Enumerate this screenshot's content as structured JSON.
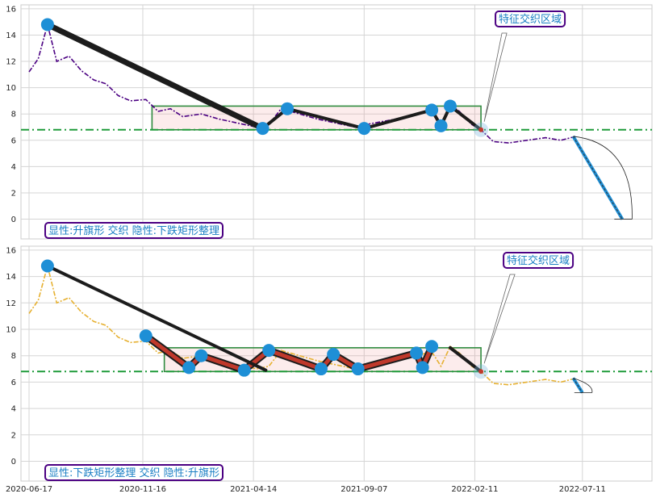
{
  "chart_data": [
    {
      "type": "line",
      "panel": "top",
      "line_color": "#4b0082",
      "line_style": "dash-dot",
      "grid": true,
      "ylim": [
        -1.5,
        16.3
      ],
      "yticks": [
        0,
        2,
        4,
        6,
        8,
        10,
        12,
        14,
        16
      ],
      "hline": 6.8,
      "annotation_label": "显性:升旗形 交织 隐性:下跌矩形整理",
      "region_label": "特征交织区域",
      "price": [
        [
          0,
          11.2
        ],
        [
          6,
          12.2
        ],
        [
          12,
          14.8
        ],
        [
          18,
          12.0
        ],
        [
          26,
          12.4
        ],
        [
          34,
          11.3
        ],
        [
          42,
          10.6
        ],
        [
          50,
          10.3
        ],
        [
          58,
          9.4
        ],
        [
          66,
          9.0
        ],
        [
          76,
          9.1
        ],
        [
          84,
          8.2
        ],
        [
          92,
          8.4
        ],
        [
          100,
          7.8
        ],
        [
          112,
          8.0
        ],
        [
          124,
          7.6
        ],
        [
          136,
          7.3
        ],
        [
          148,
          7.0
        ],
        [
          156,
          7.2
        ],
        [
          164,
          8.4
        ],
        [
          176,
          8.0
        ],
        [
          188,
          7.6
        ],
        [
          200,
          7.3
        ],
        [
          212,
          7.0
        ],
        [
          224,
          7.3
        ],
        [
          238,
          7.6
        ],
        [
          252,
          8.0
        ],
        [
          262,
          8.3
        ],
        [
          268,
          7.2
        ],
        [
          274,
          8.7
        ],
        [
          280,
          8.2
        ],
        [
          288,
          7.2
        ],
        [
          294,
          6.8
        ],
        [
          302,
          5.9
        ],
        [
          312,
          5.8
        ],
        [
          324,
          6.0
        ],
        [
          336,
          6.2
        ],
        [
          346,
          6.0
        ],
        [
          356,
          6.3
        ]
      ],
      "trend_lines": [
        [
          [
            12,
            14.8
          ],
          [
            152,
            6.9
          ]
        ],
        [
          [
            152,
            6.9
          ],
          [
            168,
            8.4
          ]
        ],
        [
          [
            168,
            8.4
          ],
          [
            218,
            6.9
          ]
        ],
        [
          [
            218,
            6.9
          ],
          [
            262,
            8.3
          ]
        ],
        [
          [
            262,
            8.3
          ],
          [
            268,
            7.1
          ]
        ],
        [
          [
            268,
            7.1
          ],
          [
            274,
            8.6
          ]
        ],
        [
          [
            274,
            8.6
          ],
          [
            294,
            6.8
          ]
        ]
      ],
      "pivots": [
        [
          12,
          14.8
        ],
        [
          152,
          6.9
        ],
        [
          168,
          8.4
        ],
        [
          218,
          6.9
        ],
        [
          262,
          8.3
        ],
        [
          268,
          7.1
        ],
        [
          274,
          8.6
        ]
      ],
      "rectangle": {
        "x0": 80,
        "x1": 294,
        "y0": 6.8,
        "y1": 8.6
      },
      "forecast": [
        [
          354,
          6.3
        ],
        [
          386,
          0
        ]
      ]
    },
    {
      "type": "line",
      "panel": "bottom",
      "line_color": "#e6b030",
      "line_style": "dash-dot",
      "grid": true,
      "ylim": [
        -1.5,
        16.3
      ],
      "yticks": [
        0,
        2,
        4,
        6,
        8,
        10,
        12,
        14,
        16
      ],
      "hline": 6.8,
      "annotation_label": "显性:下跌矩形整理 交织 隐性:升旗形",
      "region_label": "特征交织区域",
      "x_tick_labels": [
        "2020-06-17",
        "2020-11-16",
        "2021-04-14",
        "2021-09-07",
        "2022-02-11",
        "2022-07-11"
      ],
      "price": [
        [
          0,
          11.2
        ],
        [
          6,
          12.2
        ],
        [
          12,
          14.8
        ],
        [
          18,
          12.0
        ],
        [
          26,
          12.4
        ],
        [
          34,
          11.3
        ],
        [
          42,
          10.6
        ],
        [
          50,
          10.3
        ],
        [
          58,
          9.4
        ],
        [
          66,
          9.0
        ],
        [
          76,
          9.1
        ],
        [
          84,
          8.2
        ],
        [
          92,
          8.4
        ],
        [
          100,
          7.8
        ],
        [
          112,
          8.0
        ],
        [
          124,
          7.6
        ],
        [
          136,
          7.3
        ],
        [
          148,
          7.0
        ],
        [
          156,
          7.2
        ],
        [
          164,
          8.4
        ],
        [
          176,
          8.0
        ],
        [
          188,
          7.6
        ],
        [
          200,
          7.3
        ],
        [
          212,
          7.0
        ],
        [
          224,
          7.3
        ],
        [
          238,
          7.6
        ],
        [
          252,
          8.0
        ],
        [
          262,
          8.3
        ],
        [
          268,
          7.2
        ],
        [
          274,
          8.7
        ],
        [
          280,
          8.2
        ],
        [
          288,
          7.2
        ],
        [
          294,
          6.8
        ],
        [
          302,
          5.9
        ],
        [
          312,
          5.8
        ],
        [
          324,
          6.0
        ],
        [
          336,
          6.2
        ],
        [
          346,
          6.0
        ],
        [
          356,
          6.3
        ]
      ],
      "trend_lines": [
        [
          [
            12,
            14.8
          ],
          [
            154,
            6.9
          ]
        ],
        [
          [
            274,
            8.6
          ],
          [
            294,
            6.8
          ]
        ]
      ],
      "channel_lines": [
        [
          [
            76,
            9.5
          ],
          [
            104,
            7.1
          ]
        ],
        [
          [
            104,
            7.1
          ],
          [
            112,
            8.0
          ]
        ],
        [
          [
            112,
            8.0
          ],
          [
            140,
            6.9
          ]
        ],
        [
          [
            140,
            6.9
          ],
          [
            156,
            8.4
          ]
        ],
        [
          [
            156,
            8.4
          ],
          [
            190,
            7.0
          ]
        ],
        [
          [
            190,
            7.0
          ],
          [
            198,
            8.1
          ]
        ],
        [
          [
            198,
            8.1
          ],
          [
            214,
            7.0
          ]
        ],
        [
          [
            214,
            7.0
          ],
          [
            252,
            8.2
          ]
        ],
        [
          [
            252,
            8.2
          ],
          [
            256,
            7.1
          ]
        ],
        [
          [
            256,
            7.1
          ],
          [
            262,
            8.7
          ]
        ]
      ],
      "pivots": [
        [
          12,
          14.8
        ],
        [
          76,
          9.5
        ],
        [
          104,
          7.1
        ],
        [
          112,
          8.0
        ],
        [
          140,
          6.9
        ],
        [
          156,
          8.4
        ],
        [
          190,
          7.0
        ],
        [
          198,
          8.1
        ],
        [
          214,
          7.0
        ],
        [
          252,
          8.2
        ],
        [
          256,
          7.1
        ],
        [
          262,
          8.7
        ]
      ],
      "rectangle": {
        "x0": 88,
        "x1": 294,
        "y0": 6.8,
        "y1": 8.6
      },
      "forecast": [
        [
          354,
          6.3
        ],
        [
          360,
          5.2
        ]
      ]
    }
  ]
}
